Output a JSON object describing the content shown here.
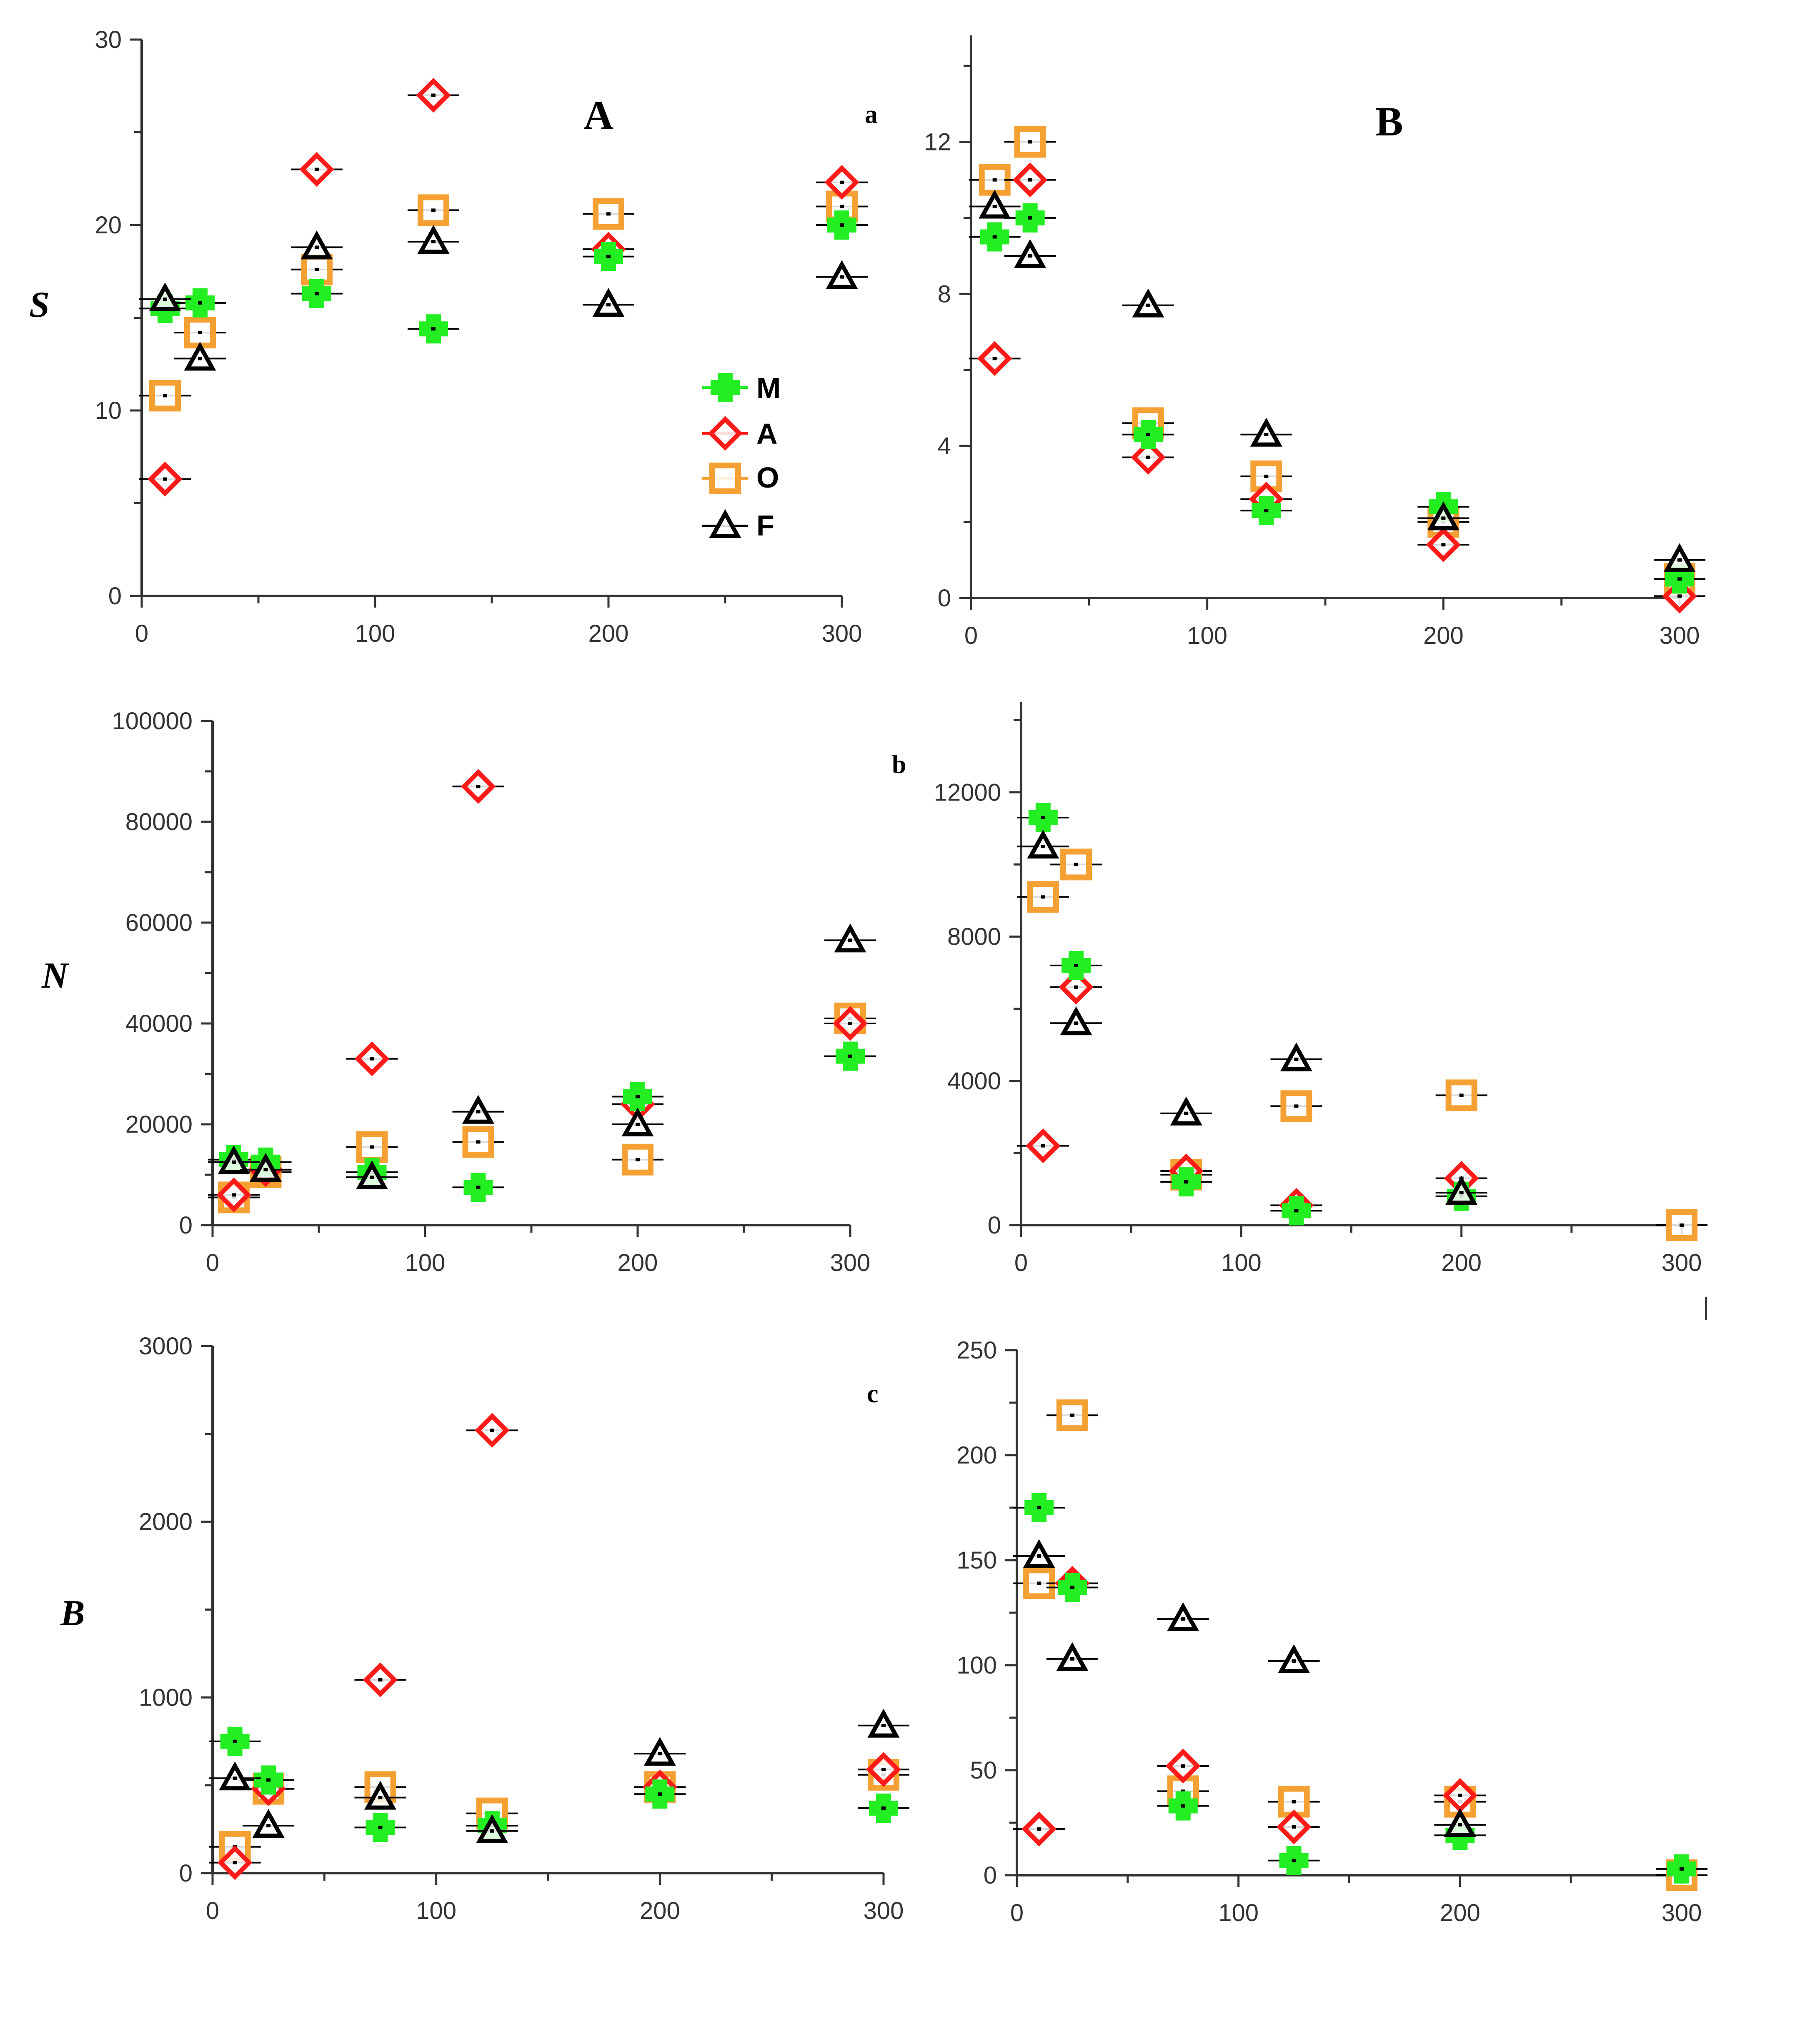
{
  "series_styles": {
    "M": {
      "label": "M",
      "shape": "plus",
      "color": "#22ee22"
    },
    "A": {
      "label": "A",
      "shape": "diamond",
      "color": "#ff1a1a"
    },
    "O": {
      "label": "O",
      "shape": "square",
      "color": "#f5a033"
    },
    "F": {
      "label": "F",
      "shape": "triangle",
      "color": "#000000"
    }
  },
  "extra_labels": {
    "stray_tick": "|"
  },
  "chart_data": [
    {
      "id": "S-total",
      "type": "scatter",
      "panel_label": "A",
      "ylabel": "S",
      "xlabel": "",
      "xlim": [
        0,
        300
      ],
      "ylim": [
        0,
        30
      ],
      "xticks": [
        0,
        100,
        200,
        300
      ],
      "xtick_labels": [
        "0",
        "100",
        "200",
        "300"
      ],
      "yticks": [
        0,
        10,
        20,
        30
      ],
      "ytick_labels": [
        "0",
        "10",
        "20",
        "30"
      ],
      "legend": [
        "M",
        "A",
        "O",
        "F"
      ],
      "legend_position": "center-right",
      "series": [
        {
          "name": "M",
          "x": [
            10,
            25,
            75,
            125,
            200,
            300
          ],
          "y": [
            15.5,
            15.8,
            16.3,
            14.4,
            18.3,
            20.0
          ]
        },
        {
          "name": "A",
          "x": [
            10,
            75,
            125,
            200,
            300
          ],
          "y": [
            6.3,
            23.0,
            27.0,
            18.7,
            22.3
          ]
        },
        {
          "name": "O",
          "x": [
            10,
            25,
            75,
            125,
            200,
            300
          ],
          "y": [
            10.8,
            14.2,
            17.6,
            20.8,
            20.6,
            21.0
          ]
        },
        {
          "name": "F",
          "x": [
            10,
            25,
            75,
            125,
            200,
            300
          ],
          "y": [
            16.0,
            12.8,
            18.8,
            19.1,
            15.7,
            17.2
          ]
        }
      ]
    },
    {
      "id": "S-deep",
      "type": "scatter",
      "panel_label": "B",
      "sub_label": "a",
      "ylabel": "",
      "xlabel": "",
      "xlim": [
        0,
        300
      ],
      "ylim": [
        0,
        14.8
      ],
      "xticks": [
        0,
        100,
        200,
        300
      ],
      "xtick_labels": [
        "0",
        "100",
        "200",
        "300"
      ],
      "yticks": [
        0,
        4,
        8,
        12
      ],
      "ytick_labels": [
        "0",
        "4",
        "8",
        "12"
      ],
      "series": [
        {
          "name": "M",
          "x": [
            10,
            25,
            75,
            125,
            200,
            300
          ],
          "y": [
            9.5,
            10.0,
            4.3,
            2.3,
            2.4,
            0.5
          ]
        },
        {
          "name": "A",
          "x": [
            10,
            25,
            75,
            125,
            200,
            300
          ],
          "y": [
            6.3,
            11.0,
            3.7,
            2.6,
            1.4,
            0.05
          ]
        },
        {
          "name": "O",
          "x": [
            10,
            25,
            75,
            125,
            200,
            300
          ],
          "y": [
            11.0,
            12.0,
            4.6,
            3.2,
            2.0,
            0.5
          ]
        },
        {
          "name": "F",
          "x": [
            10,
            25,
            75,
            125,
            200,
            300
          ],
          "y": [
            10.3,
            9.0,
            7.7,
            4.3,
            2.1,
            1.0
          ]
        }
      ]
    },
    {
      "id": "N-total",
      "type": "scatter",
      "ylabel": "N",
      "xlabel": "",
      "xlim": [
        0,
        300
      ],
      "ylim": [
        0,
        100000
      ],
      "xticks": [
        0,
        100,
        200,
        300
      ],
      "xtick_labels": [
        "0",
        "100",
        "200",
        "300"
      ],
      "yticks": [
        0,
        20000,
        40000,
        60000,
        80000,
        100000
      ],
      "ytick_labels": [
        "0",
        "20000",
        "40000",
        "60000",
        "80000",
        "100000"
      ],
      "series": [
        {
          "name": "M",
          "x": [
            10,
            25,
            75,
            125,
            200,
            300
          ],
          "y": [
            13000,
            12500,
            10500,
            7500,
            25500,
            33500
          ]
        },
        {
          "name": "A",
          "x": [
            10,
            25,
            75,
            125,
            200,
            300
          ],
          "y": [
            6000,
            11000,
            33000,
            87000,
            24000,
            40000
          ]
        },
        {
          "name": "O",
          "x": [
            10,
            25,
            75,
            125,
            200,
            300
          ],
          "y": [
            5500,
            10500,
            15500,
            16500,
            13000,
            41000
          ]
        },
        {
          "name": "F",
          "x": [
            10,
            25,
            75,
            125,
            200,
            300
          ],
          "y": [
            12500,
            11000,
            9500,
            22500,
            20000,
            56500
          ]
        }
      ]
    },
    {
      "id": "N-deep",
      "type": "scatter",
      "sub_label": "b",
      "ylabel": "",
      "xlabel": "",
      "xlim": [
        0,
        300
      ],
      "ylim": [
        0,
        14500
      ],
      "xticks": [
        0,
        100,
        200,
        300
      ],
      "xtick_labels": [
        "0",
        "100",
        "200",
        "300"
      ],
      "yticks": [
        0,
        4000,
        8000,
        12000
      ],
      "ytick_labels": [
        "0",
        "4000",
        "8000",
        "12000"
      ],
      "series": [
        {
          "name": "M",
          "x": [
            10,
            25,
            75,
            125,
            200
          ],
          "y": [
            11300,
            7200,
            1200,
            400,
            800
          ]
        },
        {
          "name": "A",
          "x": [
            10,
            25,
            75,
            125,
            200
          ],
          "y": [
            2200,
            6600,
            1500,
            550,
            1300
          ]
        },
        {
          "name": "O",
          "x": [
            10,
            25,
            75,
            125,
            200,
            300
          ],
          "y": [
            9100,
            10000,
            1400,
            3300,
            3600,
            0
          ]
        },
        {
          "name": "F",
          "x": [
            10,
            25,
            75,
            125,
            200
          ],
          "y": [
            10500,
            5600,
            3100,
            4600,
            900
          ]
        }
      ]
    },
    {
      "id": "B-total",
      "type": "scatter",
      "ylabel": "B",
      "xlabel": "",
      "xlim": [
        0,
        300
      ],
      "ylim": [
        0,
        3000
      ],
      "xticks": [
        0,
        100,
        200,
        300
      ],
      "xtick_labels": [
        "0",
        "100",
        "200",
        "300"
      ],
      "yticks": [
        0,
        1000,
        2000,
        3000
      ],
      "ytick_labels": [
        "0",
        "1000",
        "2000",
        "3000"
      ],
      "series": [
        {
          "name": "M",
          "x": [
            10,
            25,
            75,
            125,
            200,
            300
          ],
          "y": [
            750,
            530,
            260,
            270,
            450,
            370
          ]
        },
        {
          "name": "A",
          "x": [
            10,
            25,
            75,
            125,
            200,
            300
          ],
          "y": [
            60,
            480,
            1100,
            2520,
            490,
            590
          ]
        },
        {
          "name": "O",
          "x": [
            10,
            25,
            75,
            125,
            200,
            300
          ],
          "y": [
            150,
            480,
            490,
            340,
            490,
            560
          ]
        },
        {
          "name": "F",
          "x": [
            10,
            25,
            75,
            125,
            200,
            300
          ],
          "y": [
            540,
            270,
            430,
            240,
            680,
            840
          ]
        }
      ]
    },
    {
      "id": "B-deep",
      "type": "scatter",
      "sub_label": "c",
      "ylabel": "",
      "xlabel": "",
      "xlim": [
        0,
        300
      ],
      "ylim": [
        0,
        250
      ],
      "xticks": [
        0,
        100,
        200,
        300
      ],
      "xtick_labels": [
        "0",
        "100",
        "200",
        "300"
      ],
      "yticks": [
        0,
        50,
        100,
        150,
        200,
        250
      ],
      "ytick_labels": [
        "0",
        "50",
        "100",
        "150",
        "200",
        "250"
      ],
      "series": [
        {
          "name": "M",
          "x": [
            10,
            25,
            75,
            125,
            200,
            300
          ],
          "y": [
            175,
            137,
            33,
            7,
            19,
            3
          ]
        },
        {
          "name": "A",
          "x": [
            10,
            25,
            75,
            125,
            200
          ],
          "y": [
            22,
            139,
            52,
            23,
            38
          ]
        },
        {
          "name": "O",
          "x": [
            10,
            25,
            75,
            125,
            200,
            300
          ],
          "y": [
            139,
            219,
            40,
            35,
            35,
            0
          ]
        },
        {
          "name": "F",
          "x": [
            10,
            25,
            75,
            125,
            200
          ],
          "y": [
            152,
            103,
            122,
            102,
            24
          ]
        }
      ]
    }
  ]
}
